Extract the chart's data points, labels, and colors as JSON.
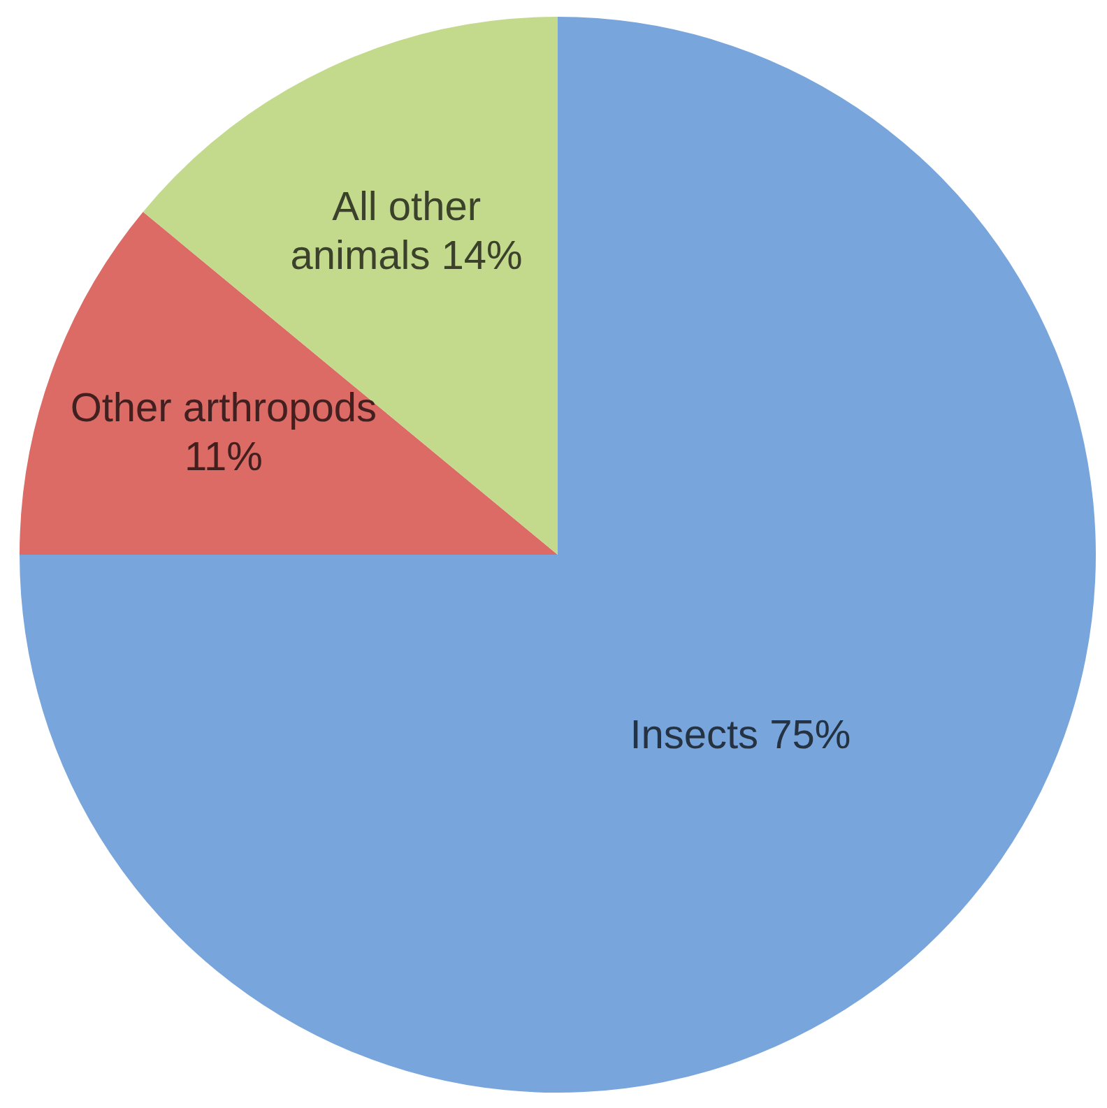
{
  "chart_data": {
    "type": "pie",
    "categories": [
      "Insects",
      "Other arthropods",
      "All other animals"
    ],
    "values": [
      75,
      11,
      14
    ],
    "colors": [
      "#78a5db",
      "#dc6b66",
      "#c3da8c"
    ],
    "value_labels": [
      "75%",
      "11%",
      "14%"
    ],
    "legend": false
  }
}
